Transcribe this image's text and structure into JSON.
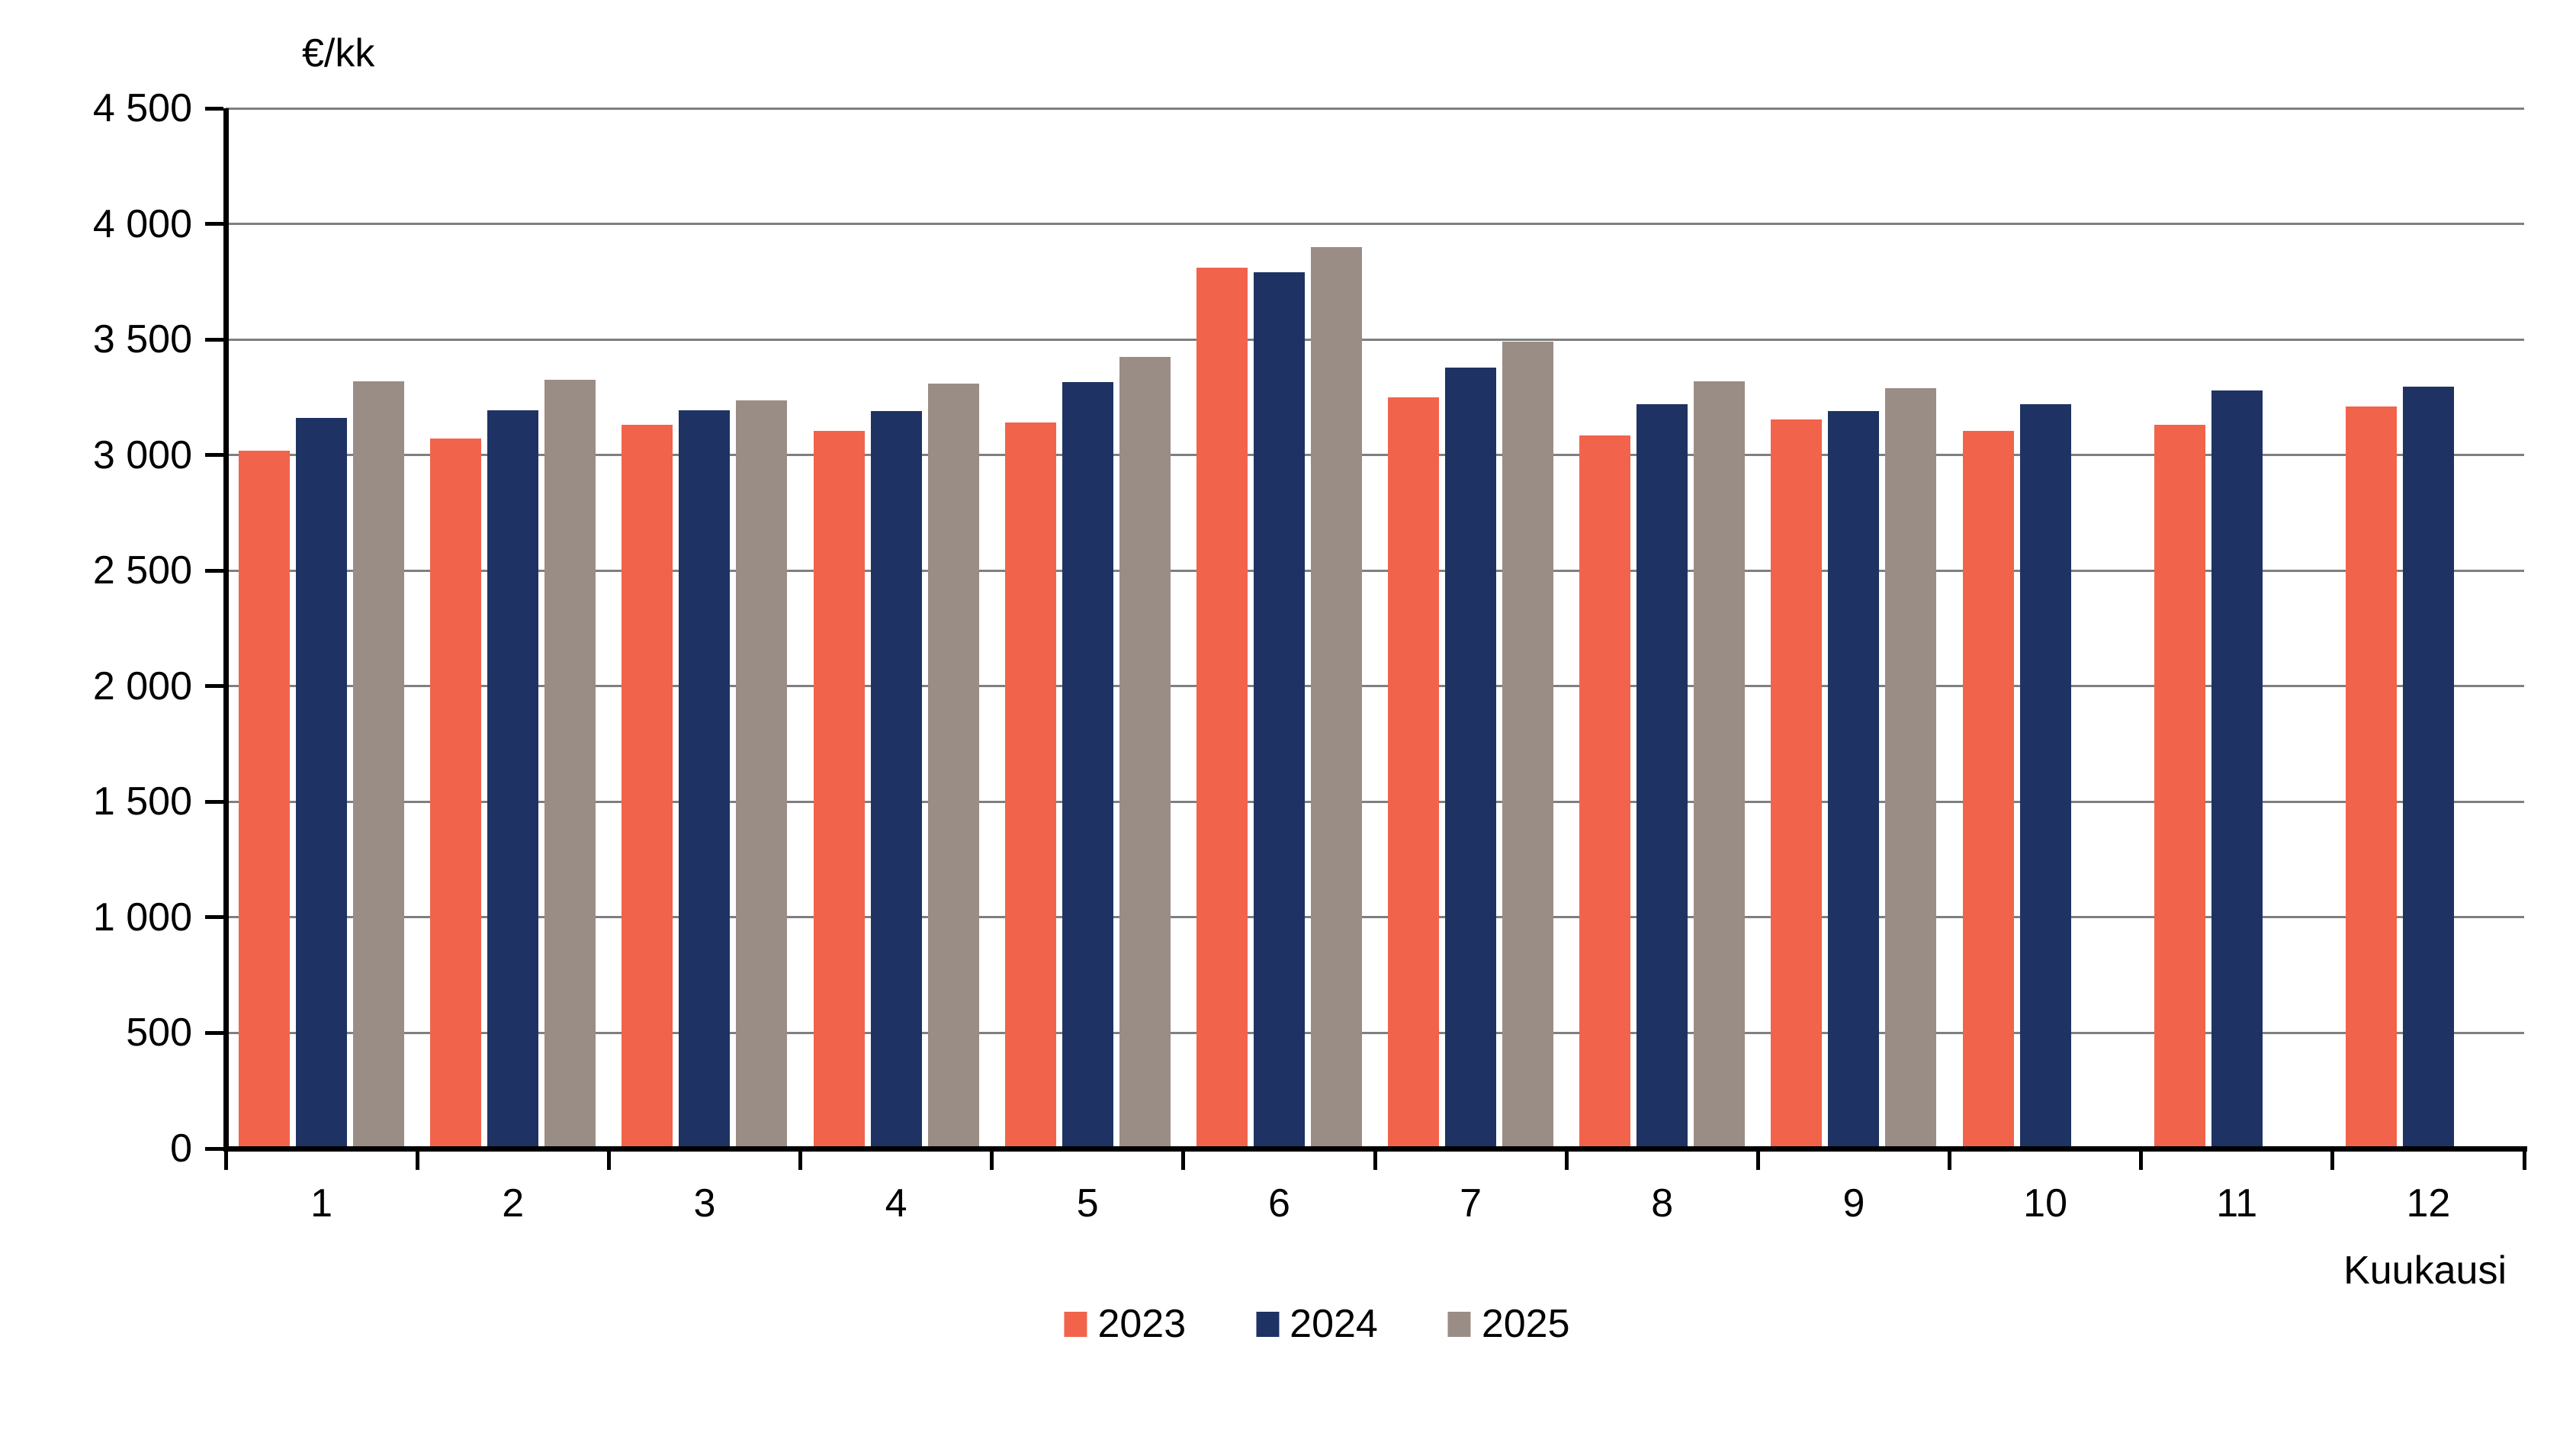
{
  "chart_data": {
    "type": "bar",
    "title": "",
    "y_axis": {
      "unit_label": "€/kk",
      "min": 0,
      "max": 4500,
      "step": 500,
      "tick_labels_top_to_bottom": [
        "4 500",
        "4 000",
        "3 500",
        "3 000",
        "2 500",
        "2 000",
        "1 500",
        "1 000",
        "500",
        "0"
      ]
    },
    "x_axis": {
      "label": "Kuukausi",
      "categories": [
        "1",
        "2",
        "3",
        "4",
        "5",
        "6",
        "7",
        "8",
        "9",
        "10",
        "11",
        "12"
      ]
    },
    "grid": true,
    "legend_position": "bottom-center",
    "series": [
      {
        "name": "2023",
        "color": "#F2634C",
        "values": [
          3020,
          3070,
          3130,
          3105,
          3140,
          3810,
          3250,
          3085,
          3155,
          3105,
          3130,
          3210
        ]
      },
      {
        "name": "2024",
        "color": "#1E3363",
        "values": [
          3160,
          3195,
          3195,
          3190,
          3315,
          3790,
          3380,
          3220,
          3190,
          3220,
          3280,
          3295
        ]
      },
      {
        "name": "2025",
        "color": "#9A8D86",
        "values": [
          3320,
          3325,
          3235,
          3310,
          3425,
          3900,
          3490,
          3320,
          3290,
          null,
          null,
          null
        ]
      }
    ]
  },
  "colors": {
    "background": "#FFFFFF",
    "axis": "#000000",
    "gridline": "#7F7F7F",
    "text": "#000000"
  }
}
